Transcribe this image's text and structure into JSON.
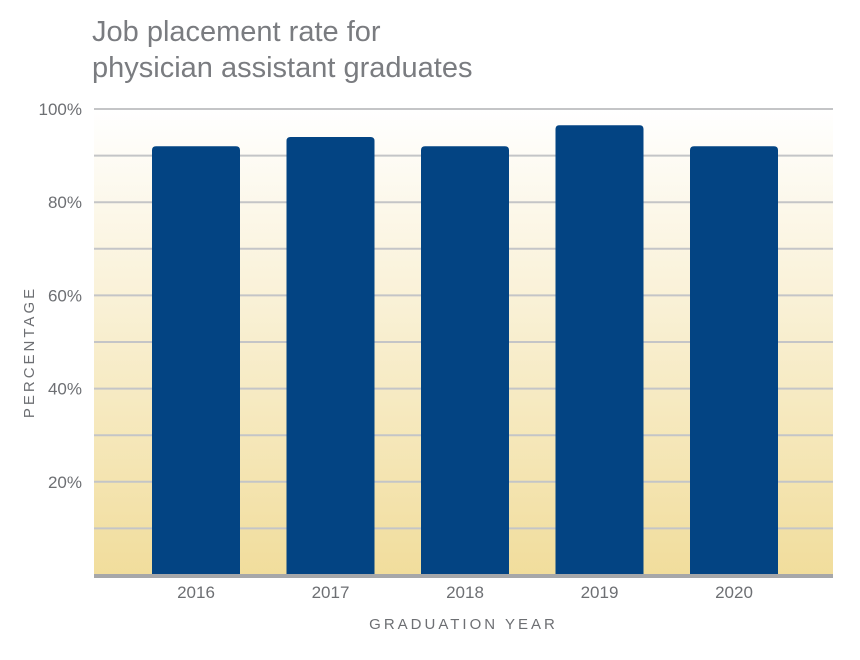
{
  "colors": {
    "bar": "#034483",
    "grid": "#c4c5c7",
    "baseline": "#a6a7a9",
    "text": "#6d6f73",
    "gradient_top": "#ffffff",
    "gradient_bottom": "#f1dd9c"
  },
  "chart_data": {
    "type": "bar",
    "title_line1": "Job placement rate for",
    "title_line2": "physician assistant graduates",
    "xlabel": "GRADUATION YEAR",
    "ylabel": "PERCENTAGE",
    "categories": [
      "2016",
      "2017",
      "2018",
      "2019",
      "2020"
    ],
    "values": [
      92,
      94,
      92,
      96.5,
      92
    ],
    "ylim": [
      0,
      100
    ],
    "yticks": [
      20,
      40,
      60,
      80,
      100
    ],
    "ytick_labels": [
      "20%",
      "40%",
      "60%",
      "80%",
      "100%"
    ],
    "minor_gridlines_every": 10,
    "grid": true,
    "legend": false
  }
}
